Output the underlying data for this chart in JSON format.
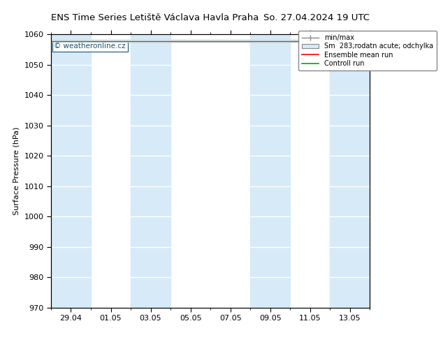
{
  "title_left": "ENS Time Series Letiště Václava Havla Praha",
  "title_right": "So. 27.04.2024 19 UTC",
  "ylabel": "Surface Pressure (hPa)",
  "ylim": [
    970,
    1060
  ],
  "yticks": [
    970,
    980,
    990,
    1000,
    1010,
    1020,
    1030,
    1040,
    1050,
    1060
  ],
  "xtick_labels": [
    "29.04",
    "01.05",
    "03.05",
    "05.05",
    "07.05",
    "09.05",
    "11.05",
    "13.05"
  ],
  "xtick_positions": [
    1,
    3,
    5,
    7,
    9,
    11,
    13,
    15
  ],
  "watermark": "© weatheronline.cz",
  "legend_entries": [
    "min/max",
    "Sm  283;rodatn acute; odchylka",
    "Ensemble mean run",
    "Controll run"
  ],
  "shaded_band_color": "#d6eaf8",
  "plot_bg_color": "#ffffff",
  "fig_bg_color": "#ffffff",
  "shaded_ranges": [
    [
      0,
      2
    ],
    [
      4,
      6
    ],
    [
      10,
      12
    ],
    [
      14,
      16
    ]
  ],
  "mean_value": 1057.8,
  "xlim": [
    0,
    16
  ]
}
